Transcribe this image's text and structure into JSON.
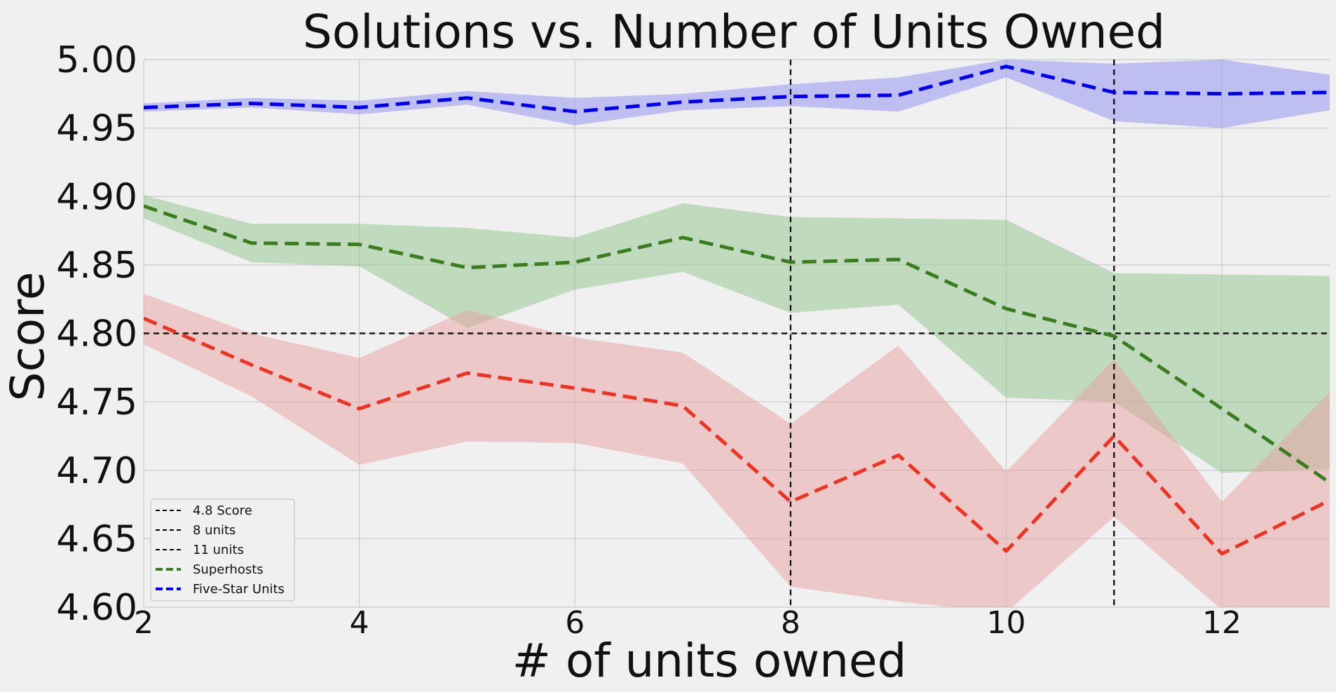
{
  "chart_data": {
    "type": "line",
    "title": "Solutions vs. Number of Units Owned",
    "xlabel": "# of units owned",
    "ylabel": "Score",
    "xlim": [
      2,
      13
    ],
    "ylim": [
      4.6,
      5.0
    ],
    "xticks": [
      "2",
      "4",
      "6",
      "8",
      "10",
      "12"
    ],
    "yticks": [
      "4.60",
      "4.65",
      "4.70",
      "4.75",
      "4.80",
      "4.85",
      "4.90",
      "4.95",
      "5.00"
    ],
    "grid": true,
    "legend_position": "bottom-left",
    "x": [
      2,
      3,
      4,
      5,
      6,
      7,
      8,
      9,
      10,
      11,
      12,
      13
    ],
    "series": [
      {
        "name": "Five-Star Units",
        "color": "#0000ee",
        "band_color": "#8c8cf0",
        "style": "dashed",
        "values": [
          4.965,
          4.968,
          4.965,
          4.972,
          4.962,
          4.969,
          4.973,
          4.974,
          4.995,
          4.976,
          4.975,
          4.976
        ],
        "lower": [
          4.962,
          4.965,
          4.96,
          4.967,
          4.952,
          4.963,
          4.966,
          4.962,
          4.987,
          4.955,
          4.95,
          4.963
        ],
        "upper": [
          4.968,
          4.972,
          4.97,
          4.977,
          4.972,
          4.975,
          4.982,
          4.987,
          5.0,
          4.997,
          5.0,
          4.989
        ]
      },
      {
        "name": "Superhosts",
        "color": "#3a7d1e",
        "band_color": "#8fc48a",
        "style": "dashed",
        "values": [
          4.893,
          4.866,
          4.865,
          4.848,
          4.852,
          4.87,
          4.852,
          4.854,
          4.818,
          4.798,
          4.745,
          4.691
        ],
        "lower": [
          4.884,
          4.852,
          4.849,
          4.804,
          4.832,
          4.845,
          4.815,
          4.821,
          4.753,
          4.75,
          4.698,
          4.701
        ],
        "upper": [
          4.901,
          4.88,
          4.88,
          4.877,
          4.87,
          4.895,
          4.885,
          4.884,
          4.883,
          4.844,
          4.843,
          4.842
        ]
      },
      {
        "name": "",
        "color": "#ee3322",
        "band_color": "#e8a0a0",
        "style": "dashed",
        "values": [
          4.811,
          4.777,
          4.745,
          4.771,
          4.76,
          4.747,
          4.677,
          4.711,
          4.641,
          4.725,
          4.639,
          4.678
        ],
        "lower": [
          4.792,
          4.754,
          4.704,
          4.721,
          4.72,
          4.705,
          4.615,
          4.604,
          4.596,
          4.666,
          4.598,
          4.6
        ],
        "upper": [
          4.829,
          4.8,
          4.782,
          4.817,
          4.797,
          4.786,
          4.734,
          4.791,
          4.699,
          4.781,
          4.677,
          4.757
        ]
      }
    ],
    "reference_lines": [
      {
        "name": "4.8 Score",
        "orientation": "horizontal",
        "value": 4.8,
        "color": "#000000"
      },
      {
        "name": "8 units",
        "orientation": "vertical",
        "value": 8,
        "color": "#000000"
      },
      {
        "name": "11 units",
        "orientation": "vertical",
        "value": 11,
        "color": "#000000"
      }
    ],
    "legend": [
      {
        "label": "4.8 Score",
        "color": "#000000",
        "kind": "ref"
      },
      {
        "label": "8 units",
        "color": "#000000",
        "kind": "ref"
      },
      {
        "label": "11 units",
        "color": "#000000",
        "kind": "ref"
      },
      {
        "label": "Superhosts",
        "color": "#3a7d1e",
        "kind": "series"
      },
      {
        "label": "Five-Star Units",
        "color": "#0000ee",
        "kind": "series"
      }
    ]
  }
}
